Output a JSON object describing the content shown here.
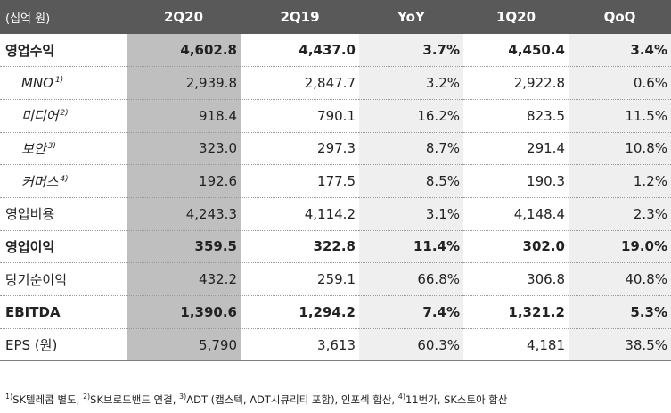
{
  "header": {
    "unit": "(십억 원)",
    "columns": [
      "2Q20",
      "2Q19",
      "YoY",
      "1Q20",
      "QoQ"
    ]
  },
  "rows": [
    {
      "label": "영업수익",
      "note": "",
      "values": [
        "4,602.8",
        "4,437.0",
        "3.7%",
        "4,450.4",
        "3.4%"
      ]
    },
    {
      "label": "MNO",
      "note": "1)",
      "values": [
        "2,939.8",
        "2,847.7",
        "3.2%",
        "2,922.8",
        "0.6%"
      ]
    },
    {
      "label": "미디어",
      "note": "2)",
      "values": [
        "918.4",
        "790.1",
        "16.2%",
        "823.5",
        "11.5%"
      ]
    },
    {
      "label": "보안",
      "note": "3)",
      "values": [
        "323.0",
        "297.3",
        "8.7%",
        "291.4",
        "10.8%"
      ]
    },
    {
      "label": "커머스",
      "note": "4)",
      "values": [
        "192.6",
        "177.5",
        "8.5%",
        "190.3",
        "1.2%"
      ]
    },
    {
      "label": "영업비용",
      "note": "",
      "values": [
        "4,243.3",
        "4,114.2",
        "3.1%",
        "4,148.4",
        "2.3%"
      ]
    },
    {
      "label": "영업이익",
      "note": "",
      "values": [
        "359.5",
        "322.8",
        "11.4%",
        "302.0",
        "19.0%"
      ]
    },
    {
      "label": "당기순이익",
      "note": "",
      "values": [
        "432.2",
        "259.1",
        "66.8%",
        "306.8",
        "40.8%"
      ]
    },
    {
      "label": "EBITDA",
      "note": "",
      "values": [
        "1,390.6",
        "1,294.2",
        "7.4%",
        "1,321.2",
        "5.3%"
      ]
    },
    {
      "label": "EPS (원)",
      "note": "",
      "values": [
        "5,790",
        "3,613",
        "60.3%",
        "4,181",
        "38.5%"
      ]
    }
  ],
  "footnotes": [
    {
      "mark": "1)",
      "text": "SK텔레콤 별도, "
    },
    {
      "mark": "2)",
      "text": "SK브로드밴드 연결, "
    },
    {
      "mark": "3)",
      "text": "ADT (캡스텍, ADT시큐리티 포함), 인포섹 합산, "
    },
    {
      "mark": "4)",
      "text": "11번가, SK스토아 합산"
    }
  ],
  "colors": {
    "header_bg": "#595959",
    "highlight_col": "#bfbfbf",
    "shaded_col": "#efefef"
  }
}
